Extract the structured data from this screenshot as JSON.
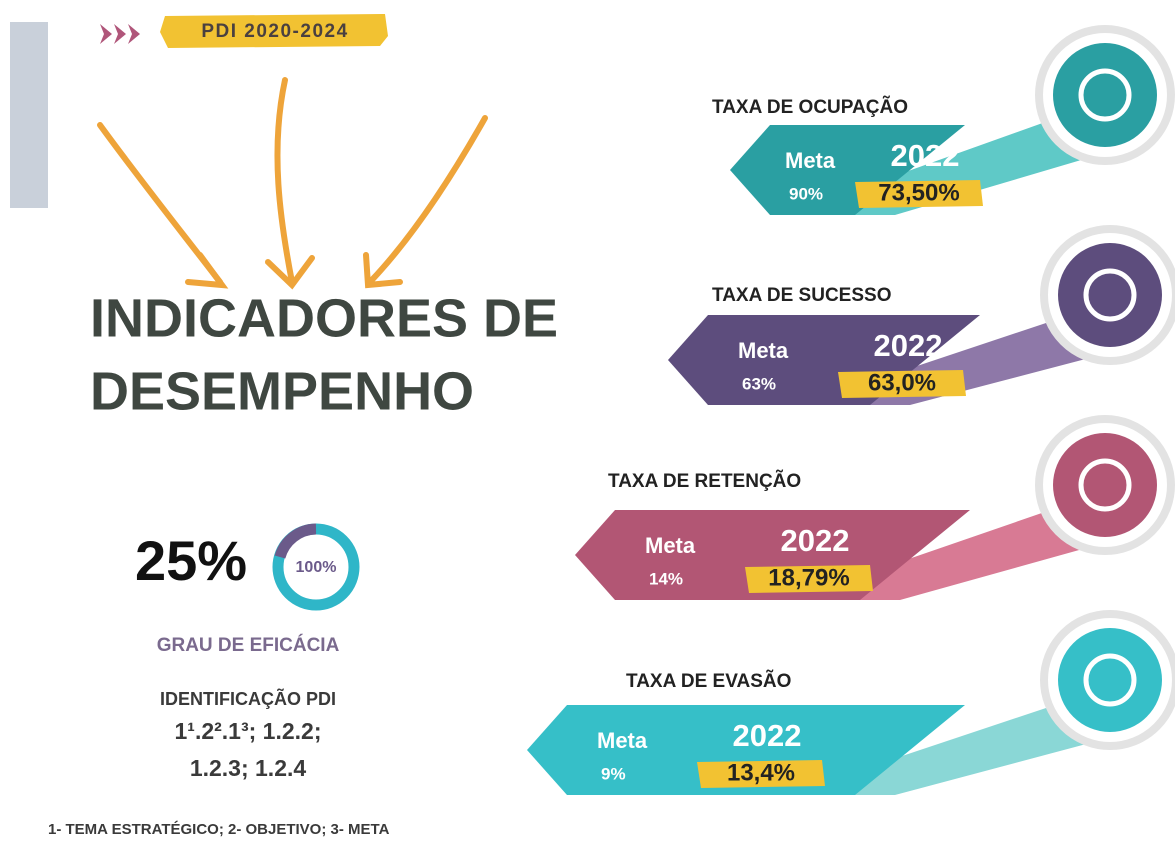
{
  "header": {
    "badge": "PDI 2020-2024"
  },
  "title": [
    "INDICADORES DE",
    "DESEMPENHO"
  ],
  "efficacy": {
    "value": "25%",
    "ring": "100%",
    "label": "GRAU DE EFICÁCIA"
  },
  "identification": {
    "label": "IDENTIFICAÇÃO PDI",
    "lines": [
      "1¹.2².1³; 1.2.2;",
      "1.2.3; 1.2.4"
    ]
  },
  "footnote": "1- TEMA ESTRATÉGICO; 2- OBJETIVO; 3- META",
  "indicators": [
    {
      "label": "TAXA DE OCUPAÇÃO",
      "meta_label": "Meta",
      "year": "2022",
      "meta": "90%",
      "result": "73,50%"
    },
    {
      "label": "TAXA DE SUCESSO",
      "meta_label": "Meta",
      "year": "2022",
      "meta": "63%",
      "result": "63,0%"
    },
    {
      "label": "TAXA DE RETENÇÃO",
      "meta_label": "Meta",
      "year": "2022",
      "meta": "14%",
      "result": "18,79%"
    },
    {
      "label": "TAXA DE EVASÃO",
      "meta_label": "Meta",
      "year": "2022",
      "meta": "9%",
      "result": "13,4%"
    }
  ]
}
